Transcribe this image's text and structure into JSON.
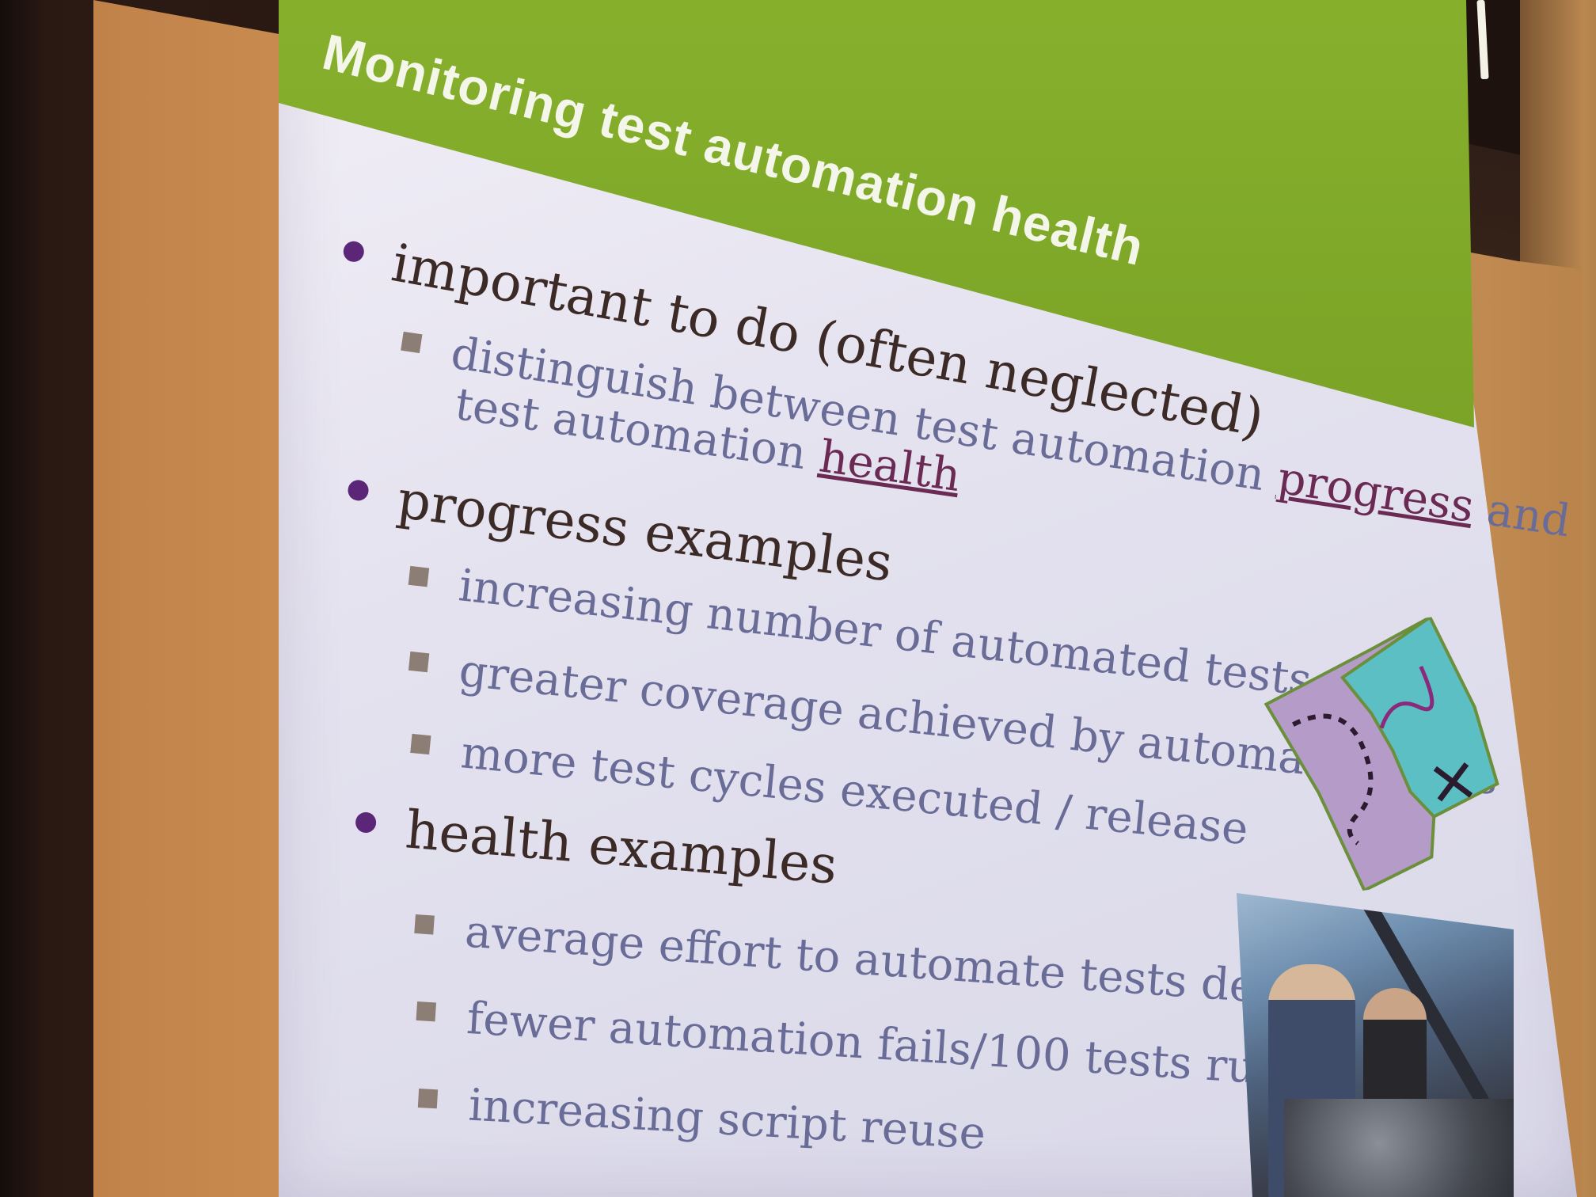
{
  "slide": {
    "title": "Monitoring test automation health",
    "bullets": [
      {
        "text": "important to do (often neglected)",
        "sub": [
          {
            "line1": "distinguish between test automation ",
            "line1_link": "progress",
            "line1_end": " and",
            "line2": "test automation ",
            "line2_link": "health"
          }
        ]
      },
      {
        "text": "progress examples",
        "sub": [
          {
            "text": "increasing number of automated tests"
          },
          {
            "text": "greater coverage achieved by automated tests"
          },
          {
            "text": "more test cycles executed / release"
          }
        ]
      },
      {
        "text": "health examples",
        "sub": [
          {
            "text": "average effort to automate tests decreasing"
          },
          {
            "text": "fewer automation fails/100 tests run"
          },
          {
            "text": "increasing script reuse"
          }
        ]
      }
    ]
  },
  "colors": {
    "title_bar": "#86b02c",
    "bullet_l1": "#5b2677",
    "bullet_l2": "#8c7d75",
    "level1_text": "#3b2a26",
    "level2_text": "#6a6c98",
    "link_text": "#6a2a54"
  },
  "images": {
    "map": "treasure-map-illustration",
    "photo": "mechanics-working-on-car-engine-photo"
  }
}
